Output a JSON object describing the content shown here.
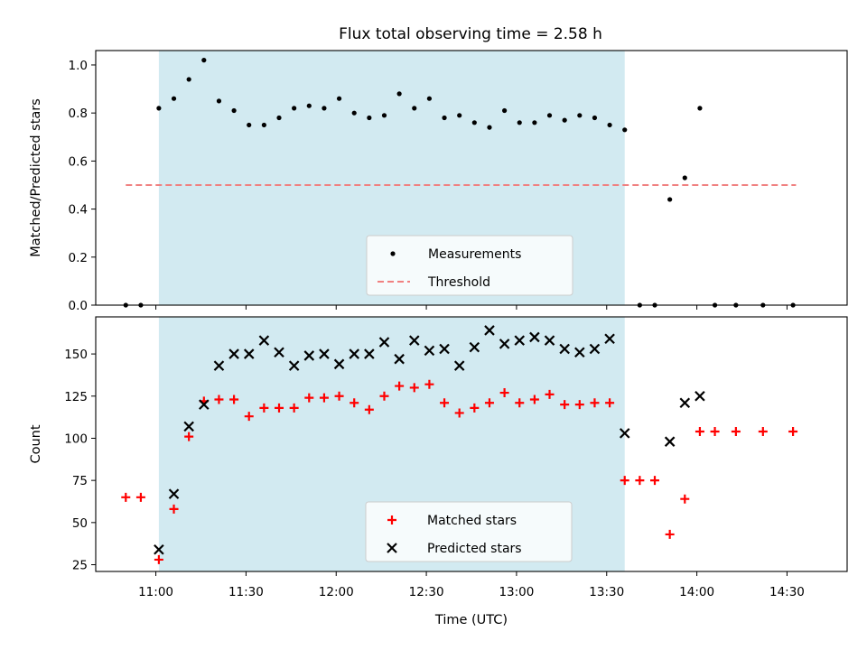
{
  "title": "Flux total observing time = 2.58 h",
  "colors": {
    "shade": "#add8e6",
    "measure": "#000000",
    "threshold": "#f08080",
    "matched": "#ff0000",
    "predicted": "#000000"
  },
  "chart_data": [
    {
      "type": "scatter",
      "ylabel": "Matched/Predicted stars",
      "xlabel": "",
      "xlim": [
        "10:40",
        "14:50"
      ],
      "ylim": [
        0,
        1.06
      ],
      "yticks": [
        0.0,
        0.2,
        0.4,
        0.6,
        0.8,
        1.0
      ],
      "ytick_labels": [
        "0.0",
        "0.2",
        "0.4",
        "0.6",
        "0.8",
        "1.0"
      ],
      "shaded_span": [
        "11:01",
        "13:36"
      ],
      "legend": {
        "placement": "lower-center",
        "entries": [
          "Measurements",
          "Threshold"
        ]
      },
      "threshold": {
        "name": "Threshold",
        "x": [
          "10:50",
          "14:33"
        ],
        "y": 0.5
      },
      "series": [
        {
          "name": "Measurements",
          "marker": "dot",
          "x": [
            "10:50",
            "10:55",
            "11:01",
            "11:06",
            "11:11",
            "11:16",
            "11:21",
            "11:26",
            "11:31",
            "11:36",
            "11:41",
            "11:46",
            "11:51",
            "11:56",
            "12:01",
            "12:06",
            "12:11",
            "12:16",
            "12:21",
            "12:26",
            "12:31",
            "12:36",
            "12:41",
            "12:46",
            "12:51",
            "12:56",
            "13:01",
            "13:06",
            "13:11",
            "13:16",
            "13:21",
            "13:26",
            "13:31",
            "13:36",
            "13:41",
            "13:46",
            "13:51",
            "13:56",
            "14:01",
            "14:06",
            "14:13",
            "14:22",
            "14:32"
          ],
          "y": [
            0.0,
            0.0,
            0.82,
            0.86,
            0.94,
            1.02,
            0.85,
            0.81,
            0.75,
            0.75,
            0.78,
            0.82,
            0.83,
            0.82,
            0.86,
            0.8,
            0.78,
            0.79,
            0.88,
            0.82,
            0.86,
            0.78,
            0.79,
            0.76,
            0.74,
            0.81,
            0.76,
            0.76,
            0.79,
            0.77,
            0.79,
            0.78,
            0.75,
            0.73,
            0.0,
            0.0,
            0.44,
            0.53,
            0.82,
            0.0,
            0.0,
            0.0,
            0.0
          ]
        }
      ]
    },
    {
      "type": "scatter",
      "ylabel": "Count",
      "xlabel": "Time (UTC)",
      "xlim": [
        "10:40",
        "14:50"
      ],
      "ylim": [
        21,
        172
      ],
      "yticks": [
        25,
        50,
        75,
        100,
        125,
        150
      ],
      "ytick_labels": [
        "25",
        "50",
        "75",
        "100",
        "125",
        "150"
      ],
      "xticks": [
        "11:00",
        "11:30",
        "12:00",
        "12:30",
        "13:00",
        "13:30",
        "14:00",
        "14:30"
      ],
      "xtick_labels": [
        "11:00",
        "11:30",
        "12:00",
        "12:30",
        "13:00",
        "13:30",
        "14:00",
        "14:30"
      ],
      "shaded_span": [
        "11:01",
        "13:36"
      ],
      "legend": {
        "placement": "lower-center",
        "entries": [
          "Matched stars",
          "Predicted stars"
        ]
      },
      "series": [
        {
          "name": "Matched stars",
          "marker": "plus",
          "x": [
            "10:50",
            "10:55",
            "11:01",
            "11:06",
            "11:11",
            "11:16",
            "11:21",
            "11:26",
            "11:31",
            "11:36",
            "11:41",
            "11:46",
            "11:51",
            "11:56",
            "12:01",
            "12:06",
            "12:11",
            "12:16",
            "12:21",
            "12:26",
            "12:31",
            "12:36",
            "12:41",
            "12:46",
            "12:51",
            "12:56",
            "13:01",
            "13:06",
            "13:11",
            "13:16",
            "13:21",
            "13:26",
            "13:31",
            "13:36",
            "13:41",
            "13:46",
            "13:51",
            "13:56",
            "14:01",
            "14:06",
            "14:13",
            "14:22",
            "14:32"
          ],
          "y": [
            65,
            65,
            28,
            58,
            101,
            122,
            123,
            123,
            113,
            118,
            118,
            118,
            124,
            124,
            125,
            121,
            117,
            125,
            131,
            130,
            132,
            121,
            115,
            118,
            121,
            127,
            121,
            123,
            126,
            120,
            120,
            121,
            121,
            75,
            75,
            75,
            43,
            64,
            104,
            104,
            104,
            104,
            104
          ]
        },
        {
          "name": "Predicted stars",
          "marker": "x",
          "x": [
            "11:01",
            "11:06",
            "11:11",
            "11:16",
            "11:21",
            "11:26",
            "11:31",
            "11:36",
            "11:41",
            "11:46",
            "11:51",
            "11:56",
            "12:01",
            "12:06",
            "12:11",
            "12:16",
            "12:21",
            "12:26",
            "12:31",
            "12:36",
            "12:41",
            "12:46",
            "12:51",
            "12:56",
            "13:01",
            "13:06",
            "13:11",
            "13:16",
            "13:21",
            "13:26",
            "13:31",
            "13:36",
            "13:51",
            "13:56",
            "14:01"
          ],
          "y": [
            34,
            67,
            107,
            120,
            143,
            150,
            150,
            158,
            151,
            143,
            149,
            150,
            144,
            150,
            150,
            157,
            147,
            158,
            152,
            153,
            143,
            154,
            164,
            156,
            158,
            160,
            158,
            153,
            151,
            153,
            159,
            103,
            98,
            121,
            125
          ]
        }
      ]
    }
  ]
}
